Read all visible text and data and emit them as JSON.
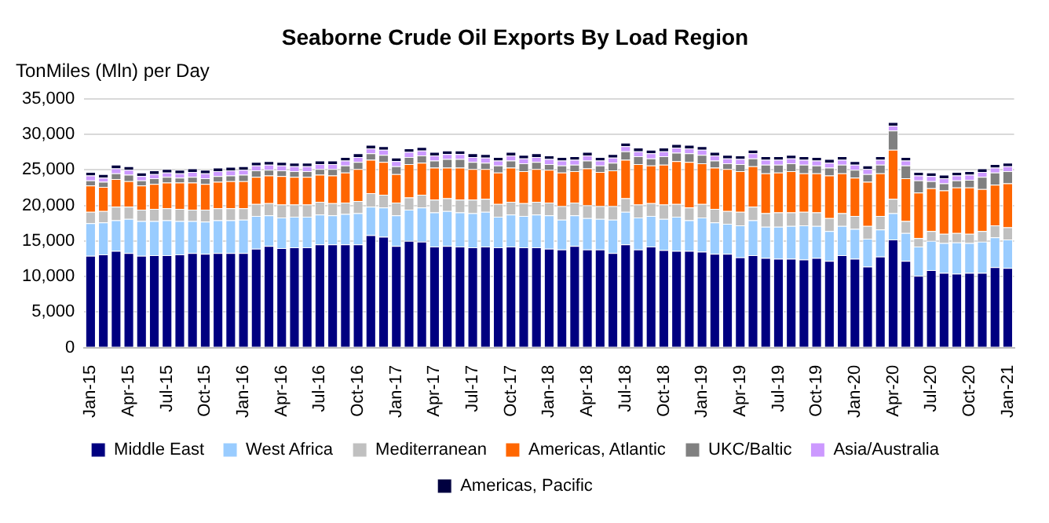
{
  "chart_data": {
    "type": "bar",
    "title": "Seaborne Crude Oil Exports By Load Region",
    "ylabel": "TonMiles (Mln) per Day",
    "stacked": true,
    "grid": "y",
    "legend": "bottom",
    "categories": [
      "Jan-15",
      null,
      null,
      "Apr-15",
      null,
      null,
      "Jul-15",
      null,
      null,
      "Oct-15",
      null,
      null,
      "Jan-16",
      null,
      null,
      "Apr-16",
      null,
      null,
      "Jul-16",
      null,
      null,
      "Oct-16",
      null,
      null,
      "Jan-17",
      null,
      null,
      "Apr-17",
      null,
      null,
      "Jul-17",
      null,
      null,
      "Oct-17",
      null,
      null,
      "Jan-18",
      null,
      null,
      "Apr-18",
      null,
      null,
      "Jul-18",
      null,
      null,
      "Oct-18",
      null,
      null,
      "Jan-19",
      null,
      null,
      "Apr-19",
      null,
      null,
      "Jul-19",
      null,
      null,
      "Oct-19",
      null,
      null,
      "Jan-20",
      null,
      null,
      "Apr-20",
      null,
      null,
      "Jul-20",
      null,
      null,
      "Oct-20",
      null,
      null,
      "Jan-21"
    ],
    "ylim": [
      0,
      35000
    ],
    "yticks": [
      0,
      {
        "value": 5000,
        "label": "5,000"
      },
      {
        "value": 10000,
        "label": "10,000"
      },
      {
        "value": 15000,
        "label": "15,000"
      },
      {
        "value": 20000,
        "label": "20,000"
      },
      {
        "value": 25000,
        "label": "25,000"
      },
      {
        "value": 30000,
        "label": "30,000"
      },
      {
        "value": 35000,
        "label": "35,000"
      }
    ],
    "series": [
      {
        "name": "Middle East",
        "color": "#000080",
        "values": [
          12900,
          13100,
          13600,
          13300,
          12900,
          13000,
          13000,
          13100,
          13300,
          13200,
          13300,
          13300,
          13300,
          13900,
          14300,
          14000,
          14100,
          14100,
          14500,
          14500,
          14500,
          14500,
          15800,
          15600,
          14300,
          15000,
          14900,
          14200,
          14300,
          14200,
          14100,
          14200,
          14100,
          14200,
          14100,
          14100,
          13900,
          13800,
          14300,
          13800,
          13800,
          13300,
          14500,
          13800,
          14200,
          13700,
          13600,
          13600,
          13500,
          13200,
          13200,
          12700,
          13000,
          12600,
          12500,
          12500,
          12400,
          12600,
          12200,
          13000,
          12500,
          11400,
          12800,
          15200,
          12200,
          10100,
          10900,
          10500,
          10400,
          10500,
          10500,
          11300,
          11200
        ]
      },
      {
        "name": "West Africa",
        "color": "#99ccff",
        "values": [
          4600,
          4500,
          4300,
          4800,
          4900,
          4800,
          4900,
          4700,
          4500,
          4500,
          4600,
          4600,
          4700,
          4600,
          4300,
          4300,
          4300,
          4300,
          4200,
          4100,
          4300,
          4400,
          4000,
          4100,
          4300,
          4400,
          4800,
          4800,
          4900,
          4800,
          4800,
          4900,
          4300,
          4500,
          4400,
          4600,
          4700,
          4200,
          4300,
          4400,
          4300,
          4700,
          4600,
          4500,
          4300,
          4400,
          4800,
          4300,
          4800,
          4400,
          4200,
          4500,
          4900,
          4400,
          4500,
          4600,
          4800,
          4500,
          4200,
          4100,
          4200,
          3900,
          3800,
          3700,
          3900,
          4100,
          4100,
          4200,
          4400,
          4200,
          4400,
          4200,
          4000
        ]
      },
      {
        "name": "Mediterranean",
        "color": "#c0c0c0",
        "values": [
          1600,
          1600,
          1900,
          1700,
          1600,
          1700,
          1700,
          1700,
          1600,
          1700,
          1700,
          1700,
          1600,
          1700,
          1700,
          1800,
          1700,
          1700,
          1800,
          1700,
          1600,
          1700,
          1900,
          1800,
          1800,
          1700,
          1800,
          1800,
          1800,
          1800,
          1900,
          1800,
          1800,
          1800,
          1800,
          1800,
          1800,
          1900,
          1800,
          1800,
          1800,
          1900,
          1900,
          1800,
          1800,
          2000,
          1800,
          1800,
          1900,
          1900,
          1800,
          1900,
          1900,
          1900,
          2000,
          1900,
          1900,
          1900,
          1800,
          1800,
          1800,
          1800,
          1900,
          2000,
          1700,
          1200,
          1400,
          1300,
          1300,
          1300,
          1500,
          1700,
          1700
        ]
      },
      {
        "name": "Americas, Atlantic",
        "color": "#ff6600",
        "values": [
          3700,
          3400,
          3900,
          3600,
          3400,
          3500,
          3600,
          3700,
          3800,
          3600,
          3700,
          3800,
          3800,
          3800,
          3900,
          4000,
          3900,
          3900,
          3800,
          3900,
          4200,
          4500,
          4700,
          4600,
          4000,
          4700,
          4500,
          4500,
          4300,
          4500,
          4300,
          4200,
          4400,
          4800,
          4500,
          4600,
          4600,
          4700,
          4400,
          5200,
          4800,
          5000,
          5400,
          5700,
          5300,
          5600,
          6000,
          6400,
          5700,
          5800,
          5900,
          5700,
          5700,
          5600,
          5600,
          5800,
          5400,
          5500,
          6000,
          5600,
          5400,
          6200,
          6000,
          6900,
          6000,
          6400,
          6000,
          6100,
          6400,
          6500,
          5900,
          5700,
          6200
        ]
      },
      {
        "name": "UKC/Baltic",
        "color": "#808080",
        "values": [
          700,
          700,
          800,
          900,
          700,
          800,
          800,
          700,
          800,
          800,
          800,
          800,
          900,
          900,
          800,
          800,
          800,
          800,
          800,
          900,
          1000,
          1000,
          900,
          1000,
          1100,
          1000,
          1000,
          1000,
          1200,
          1200,
          1000,
          900,
          1000,
          1000,
          1100,
          1000,
          800,
          1000,
          900,
          1100,
          900,
          1100,
          1200,
          1100,
          1000,
          1200,
          1200,
          1200,
          1200,
          1000,
          800,
          1000,
          1100,
          1200,
          1100,
          1100,
          1200,
          1100,
          1100,
          1200,
          1100,
          1100,
          1200,
          2700,
          1800,
          1700,
          1000,
          1000,
          1000,
          1100,
          1700,
          1700,
          1700
        ]
      },
      {
        "name": "Asia/Australia",
        "color": "#cc99ff",
        "values": [
          700,
          600,
          700,
          700,
          600,
          600,
          600,
          600,
          700,
          700,
          700,
          700,
          700,
          700,
          700,
          700,
          700,
          700,
          700,
          700,
          700,
          700,
          700,
          700,
          700,
          700,
          700,
          700,
          700,
          700,
          700,
          700,
          700,
          700,
          700,
          700,
          700,
          700,
          700,
          700,
          700,
          700,
          700,
          700,
          700,
          700,
          700,
          700,
          700,
          700,
          700,
          700,
          700,
          700,
          700,
          700,
          700,
          700,
          700,
          700,
          700,
          700,
          700,
          700,
          700,
          700,
          700,
          700,
          700,
          700,
          700,
          700,
          700
        ]
      },
      {
        "name": "Americas, Pacific",
        "color": "#00003f",
        "values": [
          500,
          500,
          500,
          500,
          500,
          500,
          500,
          500,
          500,
          500,
          500,
          500,
          500,
          500,
          500,
          500,
          500,
          500,
          500,
          500,
          500,
          500,
          500,
          500,
          500,
          500,
          500,
          500,
          500,
          500,
          500,
          500,
          500,
          500,
          500,
          500,
          500,
          500,
          500,
          500,
          500,
          500,
          500,
          500,
          500,
          500,
          500,
          500,
          500,
          500,
          500,
          500,
          500,
          500,
          500,
          500,
          500,
          500,
          500,
          500,
          500,
          500,
          500,
          500,
          500,
          500,
          500,
          500,
          500,
          500,
          500,
          500,
          500
        ]
      }
    ]
  }
}
